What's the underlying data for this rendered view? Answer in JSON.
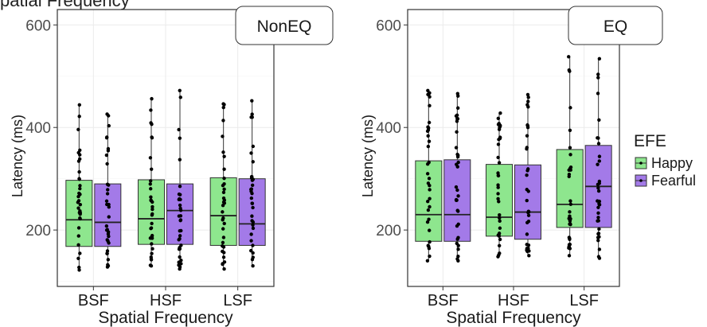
{
  "caption": "patial Frequency",
  "chart_data": [
    {
      "type": "box",
      "panel": "NonEQ",
      "xlabel": "Spatial Frequency",
      "ylabel": "Latency (ms)",
      "ylim": [
        90,
        630
      ],
      "yticks": [
        200,
        400,
        600
      ],
      "categories": [
        "BSF",
        "HSF",
        "LSF"
      ],
      "series": [
        {
          "name": "Happy",
          "color": "#8ee68e",
          "boxes": [
            {
              "q1": 168,
              "median": 220,
              "q3": 297,
              "whisker_low": 122,
              "whisker_high": 444
            },
            {
              "q1": 172,
              "median": 222,
              "q3": 298,
              "whisker_low": 130,
              "whisker_high": 456
            },
            {
              "q1": 170,
              "median": 228,
              "q3": 302,
              "whisker_low": 124,
              "whisker_high": 446
            }
          ]
        },
        {
          "name": "Fearful",
          "color": "#a37ae8",
          "boxes": [
            {
              "q1": 168,
              "median": 215,
              "q3": 290,
              "whisker_low": 128,
              "whisker_high": 426
            },
            {
              "q1": 172,
              "median": 238,
              "q3": 290,
              "whisker_low": 124,
              "whisker_high": 472
            },
            {
              "q1": 170,
              "median": 212,
              "q3": 300,
              "whisker_low": 130,
              "whisker_high": 452
            }
          ]
        }
      ],
      "grid": true
    },
    {
      "type": "box",
      "panel": "EQ",
      "xlabel": "Spatial Frequency",
      "ylabel": "Latency (ms)",
      "ylim": [
        90,
        630
      ],
      "yticks": [
        200,
        400,
        600
      ],
      "categories": [
        "BSF",
        "HSF",
        "LSF"
      ],
      "series": [
        {
          "name": "Happy",
          "color": "#8ee68e",
          "boxes": [
            {
              "q1": 178,
              "median": 230,
              "q3": 335,
              "whisker_low": 140,
              "whisker_high": 472
            },
            {
              "q1": 188,
              "median": 225,
              "q3": 328,
              "whisker_low": 148,
              "whisker_high": 428
            },
            {
              "q1": 205,
              "median": 250,
              "q3": 357,
              "whisker_low": 150,
              "whisker_high": 538
            }
          ]
        },
        {
          "name": "Fearful",
          "color": "#a37ae8",
          "boxes": [
            {
              "q1": 178,
              "median": 230,
              "q3": 337,
              "whisker_low": 140,
              "whisker_high": 466
            },
            {
              "q1": 182,
              "median": 235,
              "q3": 327,
              "whisker_low": 150,
              "whisker_high": 464
            },
            {
              "q1": 205,
              "median": 285,
              "q3": 365,
              "whisker_low": 145,
              "whisker_high": 534
            }
          ]
        }
      ],
      "grid": true
    }
  ],
  "legend": {
    "title": "EFE",
    "items": [
      {
        "label": "Happy",
        "color": "#8ee68e"
      },
      {
        "label": "Fearful",
        "color": "#a37ae8"
      }
    ],
    "position": "right"
  }
}
